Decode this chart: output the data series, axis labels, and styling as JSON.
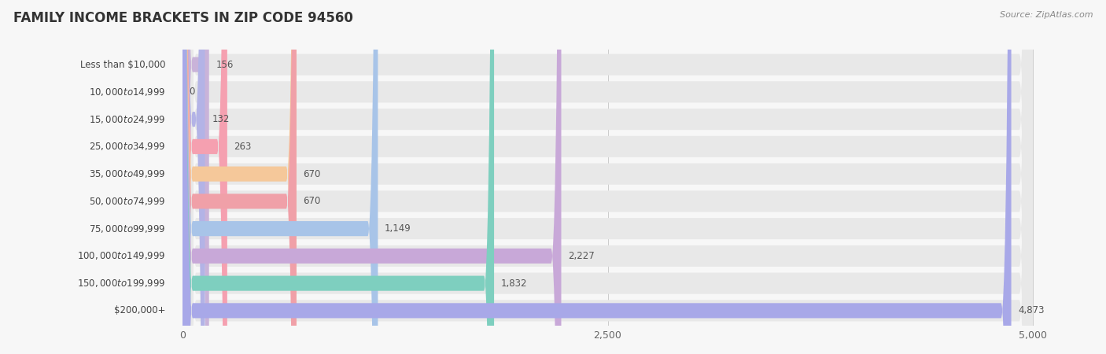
{
  "title": "FAMILY INCOME BRACKETS IN ZIP CODE 94560",
  "source": "Source: ZipAtlas.com",
  "categories": [
    "Less than $10,000",
    "$10,000 to $14,999",
    "$15,000 to $24,999",
    "$25,000 to $34,999",
    "$35,000 to $49,999",
    "$50,000 to $74,999",
    "$75,000 to $99,999",
    "$100,000 to $149,999",
    "$150,000 to $199,999",
    "$200,000+"
  ],
  "values": [
    156,
    0,
    132,
    263,
    670,
    670,
    1149,
    2227,
    1832,
    4873
  ],
  "bar_colors": [
    "#c9b3d9",
    "#80cfc5",
    "#b3b3e6",
    "#f5a0b0",
    "#f5c89a",
    "#f0a0a8",
    "#a8c4e8",
    "#c8a8d8",
    "#7ecfbf",
    "#a8a8e8"
  ],
  "xlim_max": 5000,
  "xticks": [
    0,
    2500,
    5000
  ],
  "xtick_labels": [
    "0",
    "2,500",
    "5,000"
  ],
  "background_color": "#f7f7f7",
  "bar_bg_color": "#e8e8e8",
  "title_fontsize": 12,
  "label_fontsize": 8.5,
  "value_fontsize": 8.5,
  "source_fontsize": 8
}
